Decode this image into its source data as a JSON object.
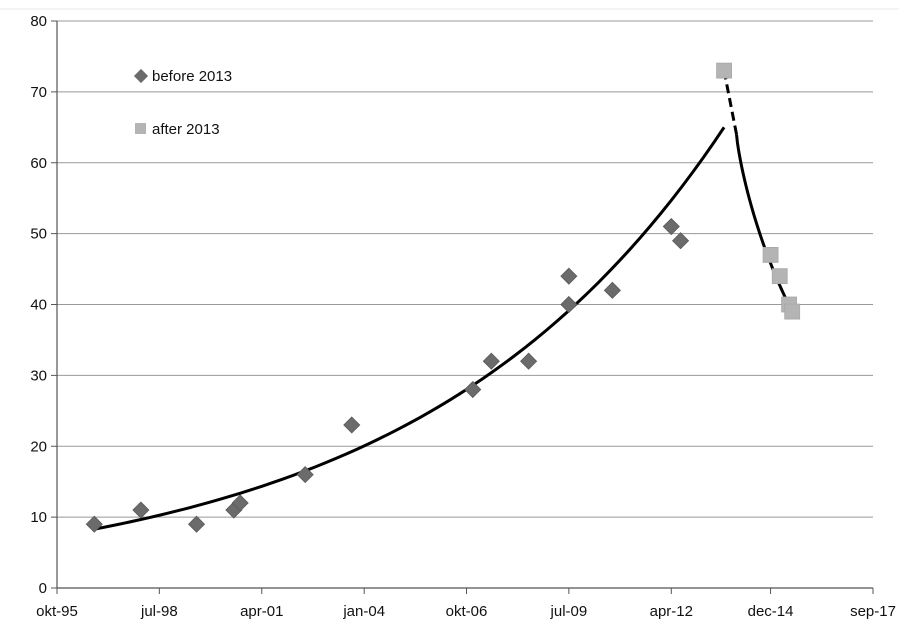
{
  "chart_data": {
    "type": "scatter",
    "title": "",
    "xlabel": "",
    "ylabel": "",
    "x_tick_labels": [
      "okt-95",
      "jul-98",
      "apr-01",
      "jan-04",
      "okt-06",
      "jul-09",
      "apr-12",
      "dec-14",
      "sep-17"
    ],
    "x_tick_dates": [
      "1995-10-01",
      "1998-07-01",
      "2001-04-01",
      "2004-01-01",
      "2006-10-01",
      "2009-07-01",
      "2012-04-01",
      "2014-12-01",
      "2017-09-01"
    ],
    "xlim": [
      "1995-10-01",
      "2017-09-01"
    ],
    "ylim": [
      0,
      80
    ],
    "y_ticks": [
      "0",
      "10",
      "20",
      "30",
      "40",
      "50",
      "60",
      "70",
      "80"
    ],
    "grid": "horizontal",
    "legend_position": "top-left",
    "series": [
      {
        "name": "before 2013",
        "marker": "diamond",
        "color": "#6b6b6b",
        "points": [
          {
            "x": "1996-10-01",
            "y": 9
          },
          {
            "x": "1998-01-01",
            "y": 11
          },
          {
            "x": "1999-07-01",
            "y": 9
          },
          {
            "x": "2000-07-01",
            "y": 11
          },
          {
            "x": "2000-09-01",
            "y": 12
          },
          {
            "x": "2002-06-01",
            "y": 16
          },
          {
            "x": "2003-09-01",
            "y": 23
          },
          {
            "x": "2006-12-01",
            "y": 28
          },
          {
            "x": "2007-06-01",
            "y": 32
          },
          {
            "x": "2008-06-01",
            "y": 32
          },
          {
            "x": "2009-07-01",
            "y": 40
          },
          {
            "x": "2009-07-01",
            "y": 44
          },
          {
            "x": "2010-09-01",
            "y": 42
          },
          {
            "x": "2012-04-01",
            "y": 51
          },
          {
            "x": "2012-07-01",
            "y": 49
          }
        ]
      },
      {
        "name": "after 2013",
        "marker": "square",
        "color": "#b4b4b4",
        "points": [
          {
            "x": "2013-09-01",
            "y": 73
          },
          {
            "x": "2014-12-01",
            "y": 47
          },
          {
            "x": "2015-03-01",
            "y": 44
          },
          {
            "x": "2015-06-01",
            "y": 40
          },
          {
            "x": "2015-07-01",
            "y": 39
          }
        ]
      }
    ],
    "trendlines": [
      {
        "type": "exponential",
        "color": "#000000",
        "from": "1996-10-01",
        "to": "2013-09-01",
        "y_start": 8.3,
        "y_end": 65
      },
      {
        "type": "connector-dashed",
        "color": "#000000",
        "from": "2013-09-01",
        "to": "2014-01-01",
        "y_start": 73,
        "y_end": 64
      },
      {
        "type": "decay",
        "color": "#000000",
        "from": "2014-01-01",
        "to": "2015-07-01",
        "y_start": 64,
        "y_end": 39
      }
    ]
  }
}
